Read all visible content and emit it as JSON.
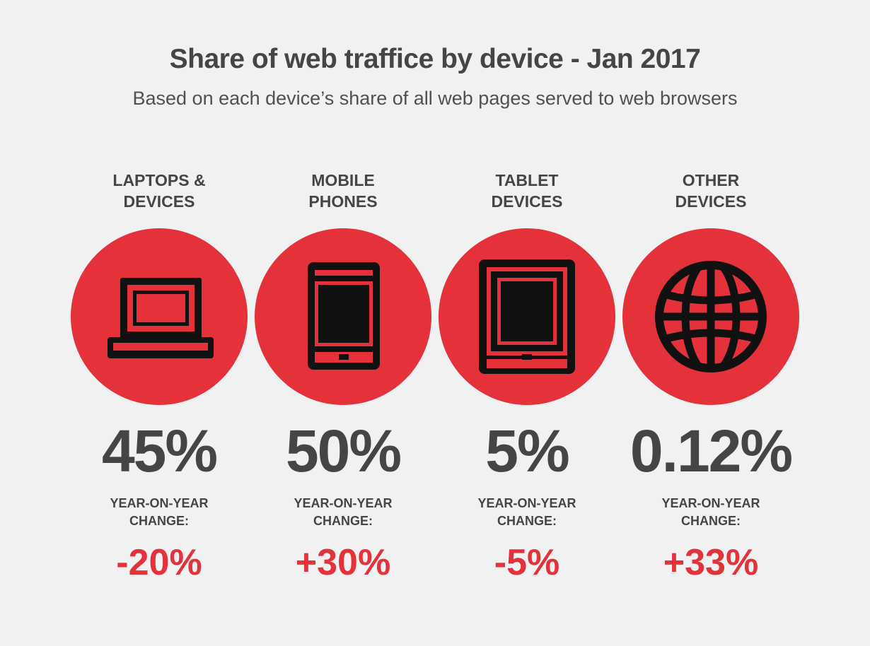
{
  "chart_data": {
    "type": "table",
    "title": "Share of web traffice by device - Jan 2017",
    "subtitle": "Based on each device’s share of all web pages served to web browsers",
    "colors": {
      "accent": "#e5323a",
      "text": "#454545",
      "background": "#f1f1f1",
      "icon": "#111111"
    },
    "devices": [
      {
        "name_lines": [
          "LAPTOPS &",
          "DEVICES"
        ],
        "icon": "laptop-icon",
        "share": "45%",
        "share_value": 45,
        "yoy_label_lines": [
          "YEAR-ON-YEAR",
          "CHANGE:"
        ],
        "yoy_change": "-20%",
        "yoy_value": -20
      },
      {
        "name_lines": [
          "MOBILE",
          "PHONES"
        ],
        "icon": "mobile-phone-icon",
        "share": "50%",
        "share_value": 50,
        "yoy_label_lines": [
          "YEAR-ON-YEAR",
          "CHANGE:"
        ],
        "yoy_change": "+30%",
        "yoy_value": 30
      },
      {
        "name_lines": [
          "TABLET",
          "DEVICES"
        ],
        "icon": "tablet-icon",
        "share": "5%",
        "share_value": 5,
        "yoy_label_lines": [
          "YEAR-ON-YEAR",
          "CHANGE:"
        ],
        "yoy_change": "-5%",
        "yoy_value": -5
      },
      {
        "name_lines": [
          "OTHER",
          "DEVICES"
        ],
        "icon": "globe-icon",
        "share": "0.12%",
        "share_value": 0.12,
        "yoy_label_lines": [
          "YEAR-ON-YEAR",
          "CHANGE:"
        ],
        "yoy_change": "+33%",
        "yoy_value": 33
      }
    ]
  }
}
